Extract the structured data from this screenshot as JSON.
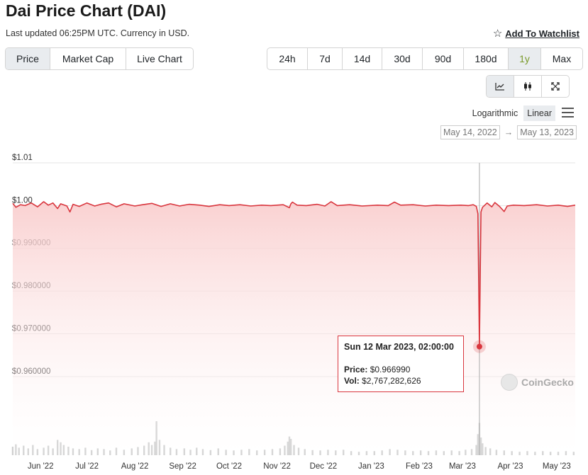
{
  "header": {
    "title": "Dai Price Chart (DAI)",
    "updated": "Last updated 06:25PM UTC. Currency in USD.",
    "watchlist_label": "Add To Watchlist"
  },
  "tabs_left": [
    {
      "label": "Price",
      "active": true
    },
    {
      "label": "Market Cap",
      "active": false
    },
    {
      "label": "Live Chart",
      "active": false
    }
  ],
  "ranges": [
    {
      "label": "24h",
      "active": false
    },
    {
      "label": "7d",
      "active": false
    },
    {
      "label": "14d",
      "active": false
    },
    {
      "label": "30d",
      "active": false
    },
    {
      "label": "90d",
      "active": false
    },
    {
      "label": "180d",
      "active": false
    },
    {
      "label": "1y",
      "active": true
    },
    {
      "label": "Max",
      "active": false
    }
  ],
  "chart_types": [
    "line-chart-icon",
    "candlestick-icon",
    "expand-icon"
  ],
  "scale": {
    "log_label": "Logarithmic",
    "linear_label": "Linear",
    "selected": "Linear"
  },
  "date_range": {
    "from": "May 14, 2022",
    "arrow": "→",
    "to": "May 13, 2023"
  },
  "tooltip": {
    "title": "Sun 12 Mar 2023, 02:00:00",
    "price_label": "Price:",
    "price_value": "$0.966990",
    "vol_label": "Vol:",
    "vol_value": "$2,767,282,626"
  },
  "watermark": "CoinGecko",
  "colors": {
    "line": "#d9363e",
    "area_top": "#fbd9d9",
    "area_bottom": "#ffffff",
    "volume": "#cccccc"
  },
  "chart_data": {
    "type": "line",
    "title": "Dai Price Chart (DAI)",
    "ylim": [
      0.955,
      1.01
    ],
    "yticks": [
      {
        "value": 1.01,
        "label": "$1.01"
      },
      {
        "value": 1.0,
        "label": "$1.00"
      },
      {
        "value": 0.99,
        "label": "$0.990000"
      },
      {
        "value": 0.98,
        "label": "$0.980000"
      },
      {
        "value": 0.97,
        "label": "$0.970000"
      },
      {
        "value": 0.96,
        "label": "$0.960000"
      }
    ],
    "x_range": [
      "2022-05-14",
      "2023-05-13"
    ],
    "xticks": [
      {
        "date": "2022-06-01",
        "label": "Jun '22"
      },
      {
        "date": "2022-07-01",
        "label": "Jul '22"
      },
      {
        "date": "2022-08-01",
        "label": "Aug '22"
      },
      {
        "date": "2022-09-01",
        "label": "Sep '22"
      },
      {
        "date": "2022-10-01",
        "label": "Oct '22"
      },
      {
        "date": "2022-11-01",
        "label": "Nov '22"
      },
      {
        "date": "2022-12-01",
        "label": "Dec '22"
      },
      {
        "date": "2023-01-01",
        "label": "Jan '23"
      },
      {
        "date": "2023-02-01",
        "label": "Feb '23"
      },
      {
        "date": "2023-03-01",
        "label": "Mar '23"
      },
      {
        "date": "2023-04-01",
        "label": "Apr '23"
      },
      {
        "date": "2023-05-01",
        "label": "May '23"
      }
    ],
    "series": [
      {
        "points": [
          [
            "2022-05-14",
            1.0005
          ],
          [
            "2022-05-16",
            0.9996
          ],
          [
            "2022-05-19",
            1.0002
          ],
          [
            "2022-05-22",
            1.0
          ],
          [
            "2022-05-26",
            1.0006
          ],
          [
            "2022-05-30",
            0.9997
          ],
          [
            "2022-06-03",
            1.0009
          ],
          [
            "2022-06-06",
            1.0001
          ],
          [
            "2022-06-09",
            1.0006
          ],
          [
            "2022-06-12",
            0.9993
          ],
          [
            "2022-06-14",
            1.0004
          ],
          [
            "2022-06-18",
            0.9999
          ],
          [
            "2022-06-20",
            0.9985
          ],
          [
            "2022-06-22",
            1.0003
          ],
          [
            "2022-06-26",
            0.9998
          ],
          [
            "2022-07-01",
            1.0006
          ],
          [
            "2022-07-06",
            0.9999
          ],
          [
            "2022-07-10",
            1.0003
          ],
          [
            "2022-07-15",
            1.0006
          ],
          [
            "2022-07-20",
            0.9997
          ],
          [
            "2022-07-25",
            1.0004
          ],
          [
            "2022-08-01",
            0.9999
          ],
          [
            "2022-08-06",
            1.0002
          ],
          [
            "2022-08-12",
            1.0005
          ],
          [
            "2022-08-18",
            0.9998
          ],
          [
            "2022-08-24",
            1.0004
          ],
          [
            "2022-08-30",
            0.9999
          ],
          [
            "2022-09-05",
            1.0003
          ],
          [
            "2022-09-12",
            1.0001
          ],
          [
            "2022-09-18",
            0.9998
          ],
          [
            "2022-09-25",
            1.0002
          ],
          [
            "2022-10-01",
            1.0
          ],
          [
            "2022-10-08",
            1.0002
          ],
          [
            "2022-10-15",
            0.9999
          ],
          [
            "2022-10-22",
            1.0001
          ],
          [
            "2022-10-28",
            1.0
          ],
          [
            "2022-11-05",
            1.0002
          ],
          [
            "2022-11-09",
            0.9995
          ],
          [
            "2022-11-10",
            1.0004
          ],
          [
            "2022-11-11",
            1.0008
          ],
          [
            "2022-11-14",
            1.0001
          ],
          [
            "2022-11-20",
            1.0
          ],
          [
            "2022-11-27",
            1.0003
          ],
          [
            "2022-12-02",
            0.9999
          ],
          [
            "2022-12-06",
            1.0009
          ],
          [
            "2022-12-10",
            1.0
          ],
          [
            "2022-12-18",
            1.0002
          ],
          [
            "2022-12-26",
            0.9999
          ],
          [
            "2023-01-05",
            1.0001
          ],
          [
            "2023-01-12",
            1.0
          ],
          [
            "2023-01-16",
            1.0008
          ],
          [
            "2023-01-20",
            1.0001
          ],
          [
            "2023-01-28",
            1.0002
          ],
          [
            "2023-02-05",
            0.9999
          ],
          [
            "2023-02-12",
            1.0001
          ],
          [
            "2023-02-20",
            1.0
          ],
          [
            "2023-02-28",
            1.0001
          ],
          [
            "2023-03-05",
            1.0
          ],
          [
            "2023-03-08",
            1.0002
          ],
          [
            "2023-03-10",
            0.9998
          ],
          [
            "2023-03-11",
            0.9981
          ],
          [
            "2023-03-12",
            0.96699
          ],
          [
            "2023-03-13",
            0.9985
          ],
          [
            "2023-03-14",
            0.9996
          ],
          [
            "2023-03-17",
            1.0006
          ],
          [
            "2023-03-20",
            0.9997
          ],
          [
            "2023-03-22",
            1.0007
          ],
          [
            "2023-03-25",
            0.9998
          ],
          [
            "2023-03-28",
            0.9986
          ],
          [
            "2023-03-30",
            0.9999
          ],
          [
            "2023-04-03",
            1.0001
          ],
          [
            "2023-04-10",
            1.0
          ],
          [
            "2023-04-18",
            1.0002
          ],
          [
            "2023-04-25",
            0.9999
          ],
          [
            "2023-05-02",
            1.0001
          ],
          [
            "2023-05-08",
            0.9998
          ],
          [
            "2023-05-13",
            1.0001
          ]
        ]
      }
    ],
    "volume": [
      [
        "2022-05-14",
        0.25
      ],
      [
        "2022-05-16",
        0.32
      ],
      [
        "2022-05-18",
        0.22
      ],
      [
        "2022-05-21",
        0.28
      ],
      [
        "2022-05-24",
        0.2
      ],
      [
        "2022-05-27",
        0.3
      ],
      [
        "2022-05-30",
        0.18
      ],
      [
        "2022-06-03",
        0.22
      ],
      [
        "2022-06-06",
        0.28
      ],
      [
        "2022-06-09",
        0.2
      ],
      [
        "2022-06-12",
        0.45
      ],
      [
        "2022-06-14",
        0.38
      ],
      [
        "2022-06-16",
        0.3
      ],
      [
        "2022-06-19",
        0.25
      ],
      [
        "2022-06-22",
        0.2
      ],
      [
        "2022-06-26",
        0.18
      ],
      [
        "2022-06-30",
        0.22
      ],
      [
        "2022-07-04",
        0.15
      ],
      [
        "2022-07-08",
        0.2
      ],
      [
        "2022-07-12",
        0.18
      ],
      [
        "2022-07-16",
        0.14
      ],
      [
        "2022-07-20",
        0.22
      ],
      [
        "2022-07-25",
        0.16
      ],
      [
        "2022-07-30",
        0.2
      ],
      [
        "2022-08-03",
        0.24
      ],
      [
        "2022-08-07",
        0.28
      ],
      [
        "2022-08-10",
        0.38
      ],
      [
        "2022-08-12",
        0.3
      ],
      [
        "2022-08-14",
        0.4
      ],
      [
        "2022-08-15",
        1.0
      ],
      [
        "2022-08-17",
        0.45
      ],
      [
        "2022-08-20",
        0.3
      ],
      [
        "2022-08-24",
        0.22
      ],
      [
        "2022-08-28",
        0.18
      ],
      [
        "2022-09-02",
        0.2
      ],
      [
        "2022-09-06",
        0.16
      ],
      [
        "2022-09-10",
        0.22
      ],
      [
        "2022-09-14",
        0.18
      ],
      [
        "2022-09-19",
        0.15
      ],
      [
        "2022-09-24",
        0.2
      ],
      [
        "2022-09-29",
        0.16
      ],
      [
        "2022-10-04",
        0.14
      ],
      [
        "2022-10-09",
        0.16
      ],
      [
        "2022-10-14",
        0.18
      ],
      [
        "2022-10-19",
        0.14
      ],
      [
        "2022-10-24",
        0.16
      ],
      [
        "2022-10-29",
        0.18
      ],
      [
        "2022-11-03",
        0.2
      ],
      [
        "2022-11-06",
        0.28
      ],
      [
        "2022-11-08",
        0.4
      ],
      [
        "2022-11-09",
        0.55
      ],
      [
        "2022-11-10",
        0.48
      ],
      [
        "2022-11-12",
        0.3
      ],
      [
        "2022-11-15",
        0.22
      ],
      [
        "2022-11-19",
        0.18
      ],
      [
        "2022-11-24",
        0.15
      ],
      [
        "2022-11-29",
        0.14
      ],
      [
        "2022-12-04",
        0.16
      ],
      [
        "2022-12-09",
        0.14
      ],
      [
        "2022-12-14",
        0.16
      ],
      [
        "2022-12-19",
        0.12
      ],
      [
        "2022-12-24",
        0.1
      ],
      [
        "2022-12-29",
        0.12
      ],
      [
        "2023-01-03",
        0.12
      ],
      [
        "2023-01-08",
        0.14
      ],
      [
        "2023-01-13",
        0.18
      ],
      [
        "2023-01-18",
        0.16
      ],
      [
        "2023-01-23",
        0.14
      ],
      [
        "2023-01-28",
        0.12
      ],
      [
        "2023-02-02",
        0.14
      ],
      [
        "2023-02-07",
        0.12
      ],
      [
        "2023-02-12",
        0.14
      ],
      [
        "2023-02-17",
        0.12
      ],
      [
        "2023-02-22",
        0.14
      ],
      [
        "2023-02-27",
        0.12
      ],
      [
        "2023-03-03",
        0.16
      ],
      [
        "2023-03-07",
        0.18
      ],
      [
        "2023-03-10",
        0.3
      ],
      [
        "2023-03-11",
        0.62
      ],
      [
        "2023-03-12",
        0.95
      ],
      [
        "2023-03-13",
        0.52
      ],
      [
        "2023-03-14",
        0.35
      ],
      [
        "2023-03-16",
        0.24
      ],
      [
        "2023-03-19",
        0.2
      ],
      [
        "2023-03-23",
        0.16
      ],
      [
        "2023-03-28",
        0.14
      ],
      [
        "2023-04-02",
        0.12
      ],
      [
        "2023-04-07",
        0.1
      ],
      [
        "2023-04-12",
        0.12
      ],
      [
        "2023-04-17",
        0.1
      ],
      [
        "2023-04-22",
        0.12
      ],
      [
        "2023-04-27",
        0.1
      ],
      [
        "2023-05-02",
        0.1
      ],
      [
        "2023-05-07",
        0.12
      ],
      [
        "2023-05-12",
        0.1
      ]
    ],
    "highlight": {
      "date": "2023-03-12",
      "value": 0.96699
    },
    "grid": true,
    "legend": "none"
  }
}
